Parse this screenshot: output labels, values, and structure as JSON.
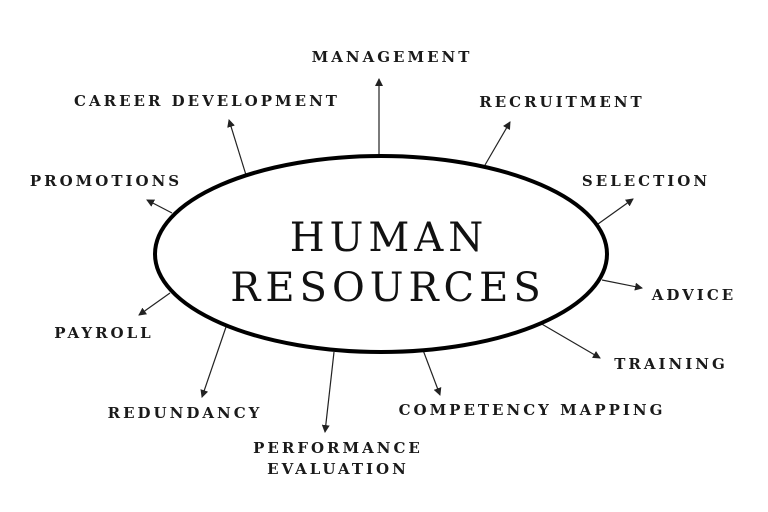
{
  "center": {
    "line1": "HUMAN",
    "line2": "RESOURCES"
  },
  "branches": {
    "management": "MANAGEMENT",
    "recruitment": "RECRUITMENT",
    "selection": "SELECTION",
    "advice": "ADVICE",
    "training": "TRAINING",
    "competency_mapping": "COMPETENCY MAPPING",
    "performance_line1": "PERFORMANCE",
    "performance_line2": "EVALUATION",
    "redundancy": "REDUNDANCY",
    "payroll": "PAYROLL",
    "promotions": "PROMOTIONS",
    "career_development": "CAREER DEVELOPMENT"
  },
  "colors": {
    "ink": "#111111",
    "background": "#ffffff"
  }
}
